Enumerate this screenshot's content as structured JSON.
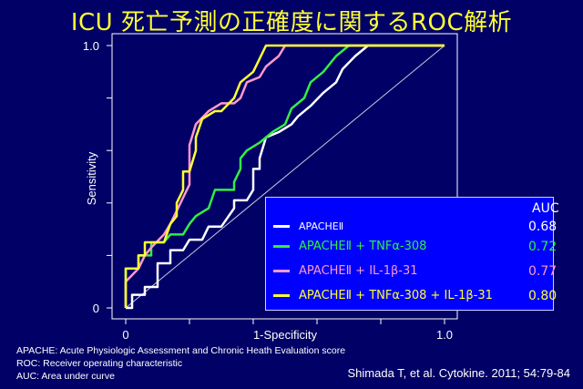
{
  "title": "ICU 死亡予測の正確度に関するROC解析",
  "colors": {
    "background": "#000066",
    "title": "#ffff33",
    "legend_bg": "#0000ff",
    "series": [
      "#ffffff",
      "#33ee44",
      "#ff99cc",
      "#ffff33"
    ]
  },
  "chart_data": {
    "type": "line",
    "xlabel": "1-Specificity",
    "ylabel": "Sensitivity",
    "xlim": [
      0,
      1
    ],
    "ylim": [
      0,
      1
    ],
    "x_ticks": [
      "0",
      "1.0"
    ],
    "y_ticks": [
      "0",
      "1.0"
    ],
    "diagonal_reference": true,
    "legend_header": "AUC",
    "series": [
      {
        "name": "APACHEⅡ",
        "auc": "0.68",
        "points": [
          [
            0,
            0
          ],
          [
            0.02,
            0
          ],
          [
            0.02,
            0.05
          ],
          [
            0.06,
            0.05
          ],
          [
            0.06,
            0.08
          ],
          [
            0.1,
            0.08
          ],
          [
            0.1,
            0.17
          ],
          [
            0.14,
            0.17
          ],
          [
            0.14,
            0.22
          ],
          [
            0.18,
            0.22
          ],
          [
            0.2,
            0.26
          ],
          [
            0.24,
            0.26
          ],
          [
            0.26,
            0.31
          ],
          [
            0.3,
            0.31
          ],
          [
            0.34,
            0.38
          ],
          [
            0.34,
            0.41
          ],
          [
            0.38,
            0.41
          ],
          [
            0.4,
            0.45
          ],
          [
            0.4,
            0.53
          ],
          [
            0.42,
            0.53
          ],
          [
            0.42,
            0.57
          ],
          [
            0.44,
            0.65
          ],
          [
            0.48,
            0.67
          ],
          [
            0.52,
            0.7
          ],
          [
            0.54,
            0.73
          ],
          [
            0.58,
            0.77
          ],
          [
            0.62,
            0.82
          ],
          [
            0.66,
            0.86
          ],
          [
            0.68,
            0.91
          ],
          [
            0.72,
            0.96
          ],
          [
            0.76,
            1
          ],
          [
            1,
            1
          ]
        ]
      },
      {
        "name": "APACHEⅡ + TNFα-308",
        "auc": "0.72",
        "points": [
          [
            0,
            0
          ],
          [
            0,
            0.15
          ],
          [
            0.04,
            0.15
          ],
          [
            0.04,
            0.2
          ],
          [
            0.08,
            0.2
          ],
          [
            0.08,
            0.25
          ],
          [
            0.12,
            0.25
          ],
          [
            0.14,
            0.28
          ],
          [
            0.18,
            0.28
          ],
          [
            0.2,
            0.32
          ],
          [
            0.22,
            0.35
          ],
          [
            0.26,
            0.38
          ],
          [
            0.28,
            0.45
          ],
          [
            0.34,
            0.45
          ],
          [
            0.34,
            0.48
          ],
          [
            0.36,
            0.53
          ],
          [
            0.36,
            0.57
          ],
          [
            0.38,
            0.6
          ],
          [
            0.42,
            0.63
          ],
          [
            0.46,
            0.67
          ],
          [
            0.5,
            0.7
          ],
          [
            0.52,
            0.76
          ],
          [
            0.56,
            0.8
          ],
          [
            0.58,
            0.86
          ],
          [
            0.62,
            0.9
          ],
          [
            0.66,
            0.96
          ],
          [
            0.7,
            1
          ],
          [
            1,
            1
          ]
        ]
      },
      {
        "name": "APACHEⅡ + IL-1β-31",
        "auc": "0.77",
        "points": [
          [
            0,
            0
          ],
          [
            0,
            0.1
          ],
          [
            0.04,
            0.15
          ],
          [
            0.06,
            0.2
          ],
          [
            0.08,
            0.23
          ],
          [
            0.12,
            0.28
          ],
          [
            0.14,
            0.32
          ],
          [
            0.16,
            0.37
          ],
          [
            0.18,
            0.42
          ],
          [
            0.2,
            0.47
          ],
          [
            0.2,
            0.62
          ],
          [
            0.22,
            0.7
          ],
          [
            0.26,
            0.75
          ],
          [
            0.3,
            0.78
          ],
          [
            0.34,
            0.78
          ],
          [
            0.36,
            0.8
          ],
          [
            0.38,
            0.86
          ],
          [
            0.42,
            0.88
          ],
          [
            0.44,
            0.92
          ],
          [
            0.48,
            0.96
          ],
          [
            0.5,
            1
          ],
          [
            1,
            1
          ]
        ]
      },
      {
        "name": "APACHEⅡ + TNFα-308 + IL-1β-31",
        "auc": "0.80",
        "points": [
          [
            0,
            0
          ],
          [
            0,
            0.15
          ],
          [
            0.04,
            0.15
          ],
          [
            0.04,
            0.2
          ],
          [
            0.06,
            0.2
          ],
          [
            0.06,
            0.25
          ],
          [
            0.12,
            0.25
          ],
          [
            0.14,
            0.32
          ],
          [
            0.16,
            0.35
          ],
          [
            0.16,
            0.4
          ],
          [
            0.18,
            0.45
          ],
          [
            0.18,
            0.52
          ],
          [
            0.2,
            0.52
          ],
          [
            0.22,
            0.6
          ],
          [
            0.22,
            0.65
          ],
          [
            0.24,
            0.72
          ],
          [
            0.28,
            0.75
          ],
          [
            0.3,
            0.75
          ],
          [
            0.34,
            0.8
          ],
          [
            0.36,
            0.86
          ],
          [
            0.4,
            0.9
          ],
          [
            0.42,
            0.95
          ],
          [
            0.44,
            1
          ],
          [
            1,
            1
          ]
        ]
      }
    ]
  },
  "footnotes": [
    "APACHE: Acute Physiologic Assessment and Chronic Heath Evaluation score",
    "ROC: Receiver operating characteristic",
    "AUC: Area under curve"
  ],
  "citation": "Shimada T, et al. Cytokine. 2011; 54:79-84"
}
